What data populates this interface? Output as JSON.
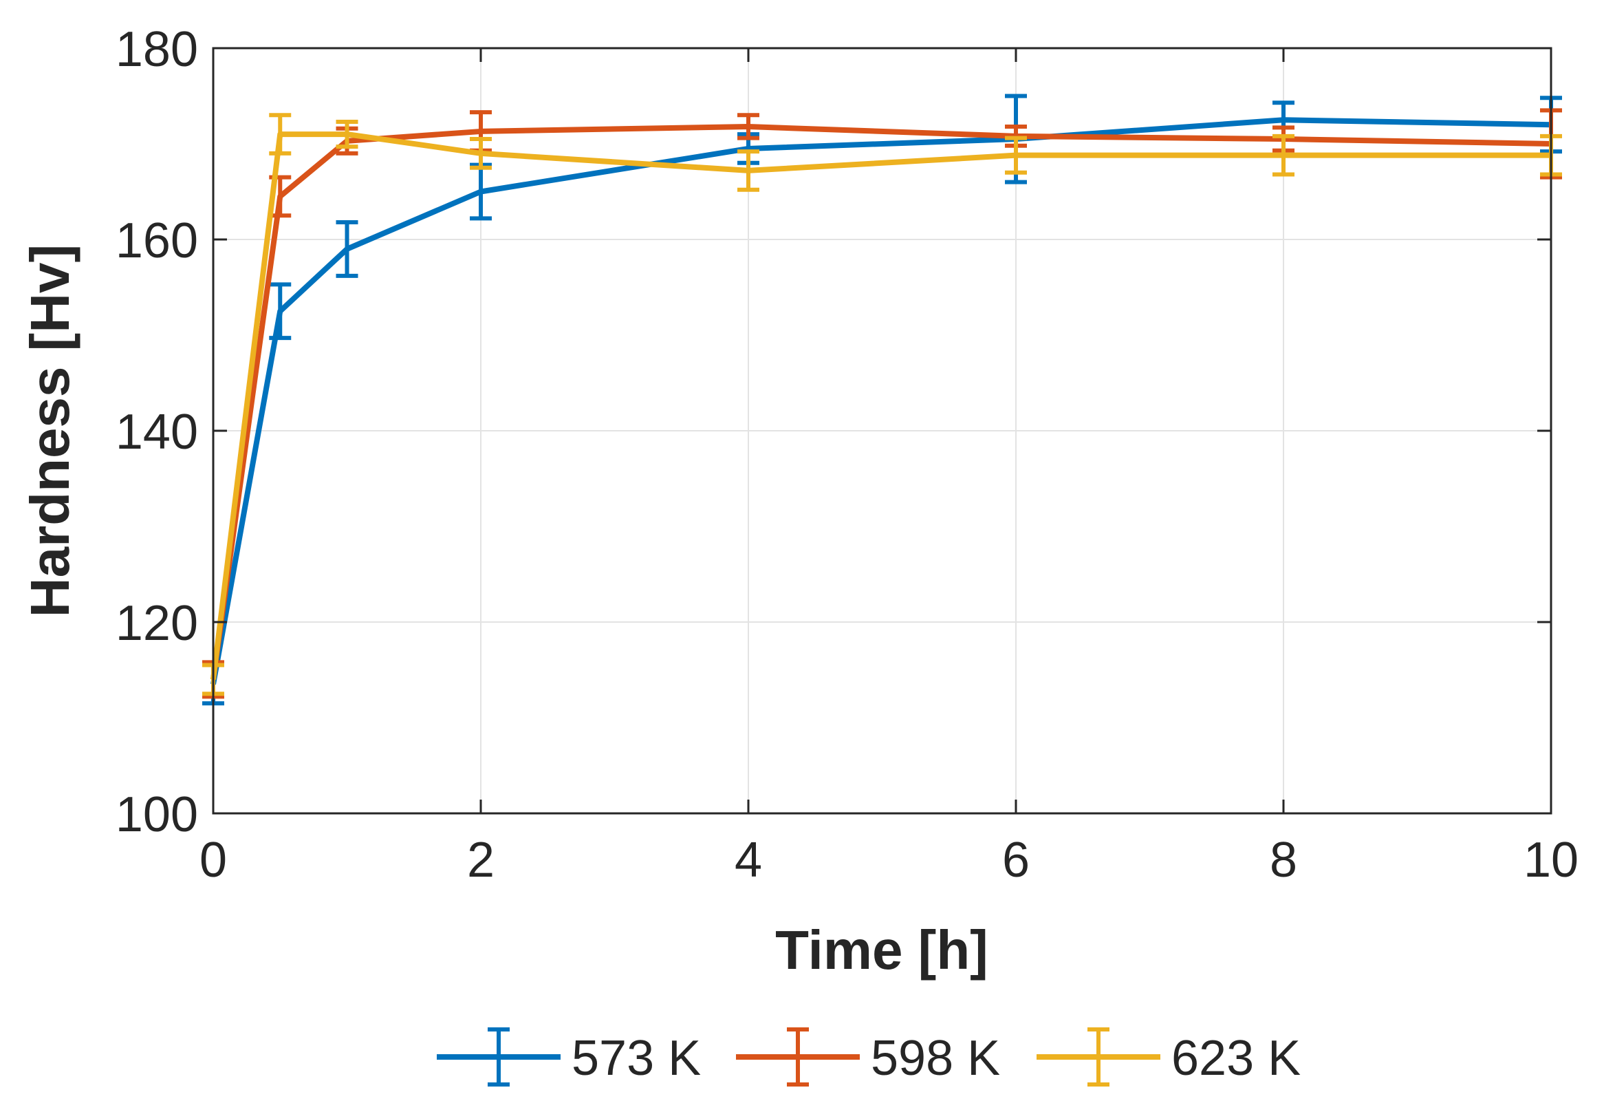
{
  "chart_data": {
    "type": "line",
    "title": "",
    "xlabel": "Time [h]",
    "ylabel": "Hardness [Hv]",
    "xlim": [
      0,
      10
    ],
    "ylim": [
      100,
      180
    ],
    "xticks": [
      0,
      2,
      4,
      6,
      8,
      10
    ],
    "xtick_labels": [
      "0",
      "2",
      "4",
      "6",
      "8",
      "10"
    ],
    "yticks": [
      100,
      120,
      140,
      160,
      180
    ],
    "ytick_labels": [
      "100",
      "120",
      "140",
      "160",
      "180"
    ],
    "grid": true,
    "legend_position": "bottom",
    "x": [
      0,
      0.5,
      1,
      2,
      4,
      6,
      8,
      10
    ],
    "series": [
      {
        "name": "573 K",
        "color": "#0072BD",
        "values": [
          113.5,
          152.5,
          159,
          165,
          169.5,
          170.5,
          172.5,
          172
        ],
        "errors": [
          2.0,
          2.8,
          2.8,
          2.8,
          1.5,
          4.5,
          1.8,
          2.8
        ]
      },
      {
        "name": "598 K",
        "color": "#D95319",
        "values": [
          114,
          164.5,
          170.3,
          171.3,
          171.8,
          170.8,
          170.5,
          170
        ],
        "errors": [
          1.8,
          2.0,
          1.3,
          2.0,
          1.2,
          1.0,
          1.2,
          3.5
        ]
      },
      {
        "name": "623 K",
        "color": "#EDB120",
        "values": [
          114,
          171,
          171,
          169,
          167.2,
          168.8,
          168.8,
          168.8
        ],
        "errors": [
          1.5,
          2.0,
          1.3,
          1.5,
          2.0,
          1.8,
          2.0,
          2.0
        ]
      }
    ]
  }
}
